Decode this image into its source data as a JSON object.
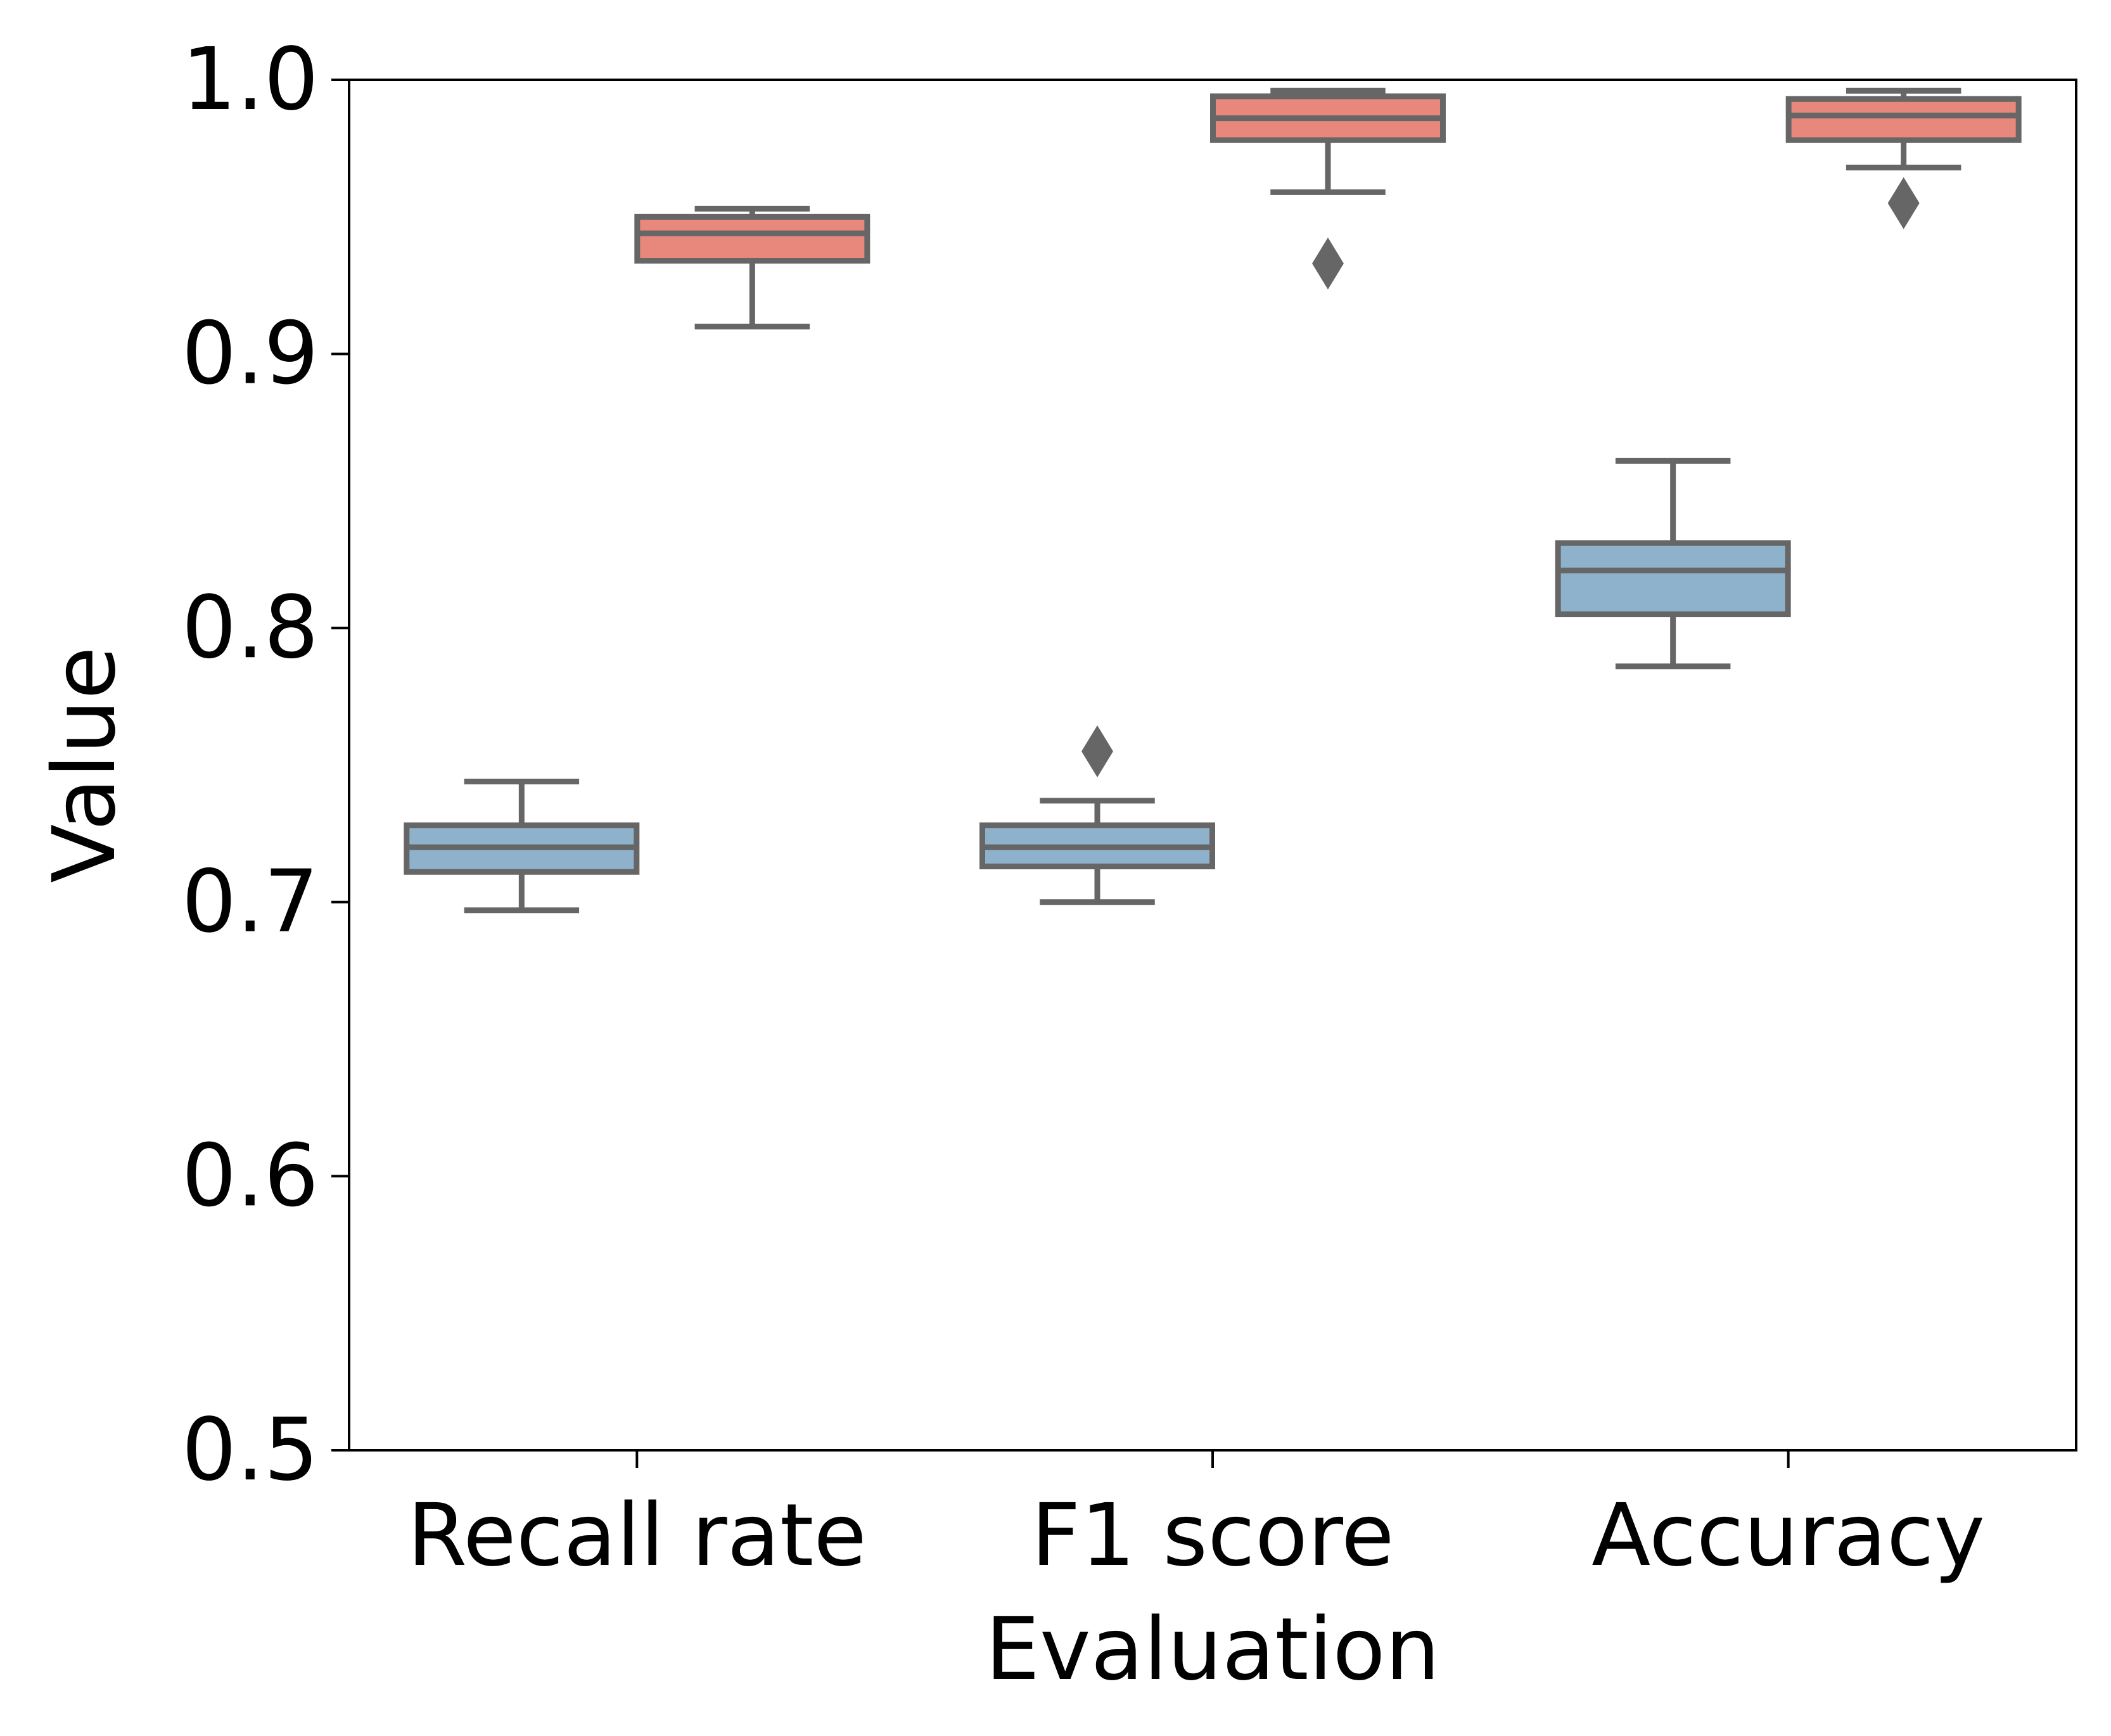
{
  "chart_data": {
    "type": "box",
    "title": "",
    "xlabel": "Evaluation",
    "ylabel": "Value",
    "ylim": [
      0.5,
      1.0
    ],
    "yticks": [
      "0.5",
      "0.6",
      "0.7",
      "0.8",
      "0.9",
      "1.0"
    ],
    "categories": [
      "Recall rate",
      "F1 score",
      "Accuracy"
    ],
    "grid": false,
    "legend": false,
    "colors": {
      "series_a": "#8fb2cc",
      "series_b": "#e8877c",
      "box_edge": "#666666",
      "axis": "#000000"
    },
    "series": [
      {
        "boxes": [
          {
            "category": "Recall rate",
            "whislo": 0.697,
            "q1": 0.711,
            "med": 0.72,
            "q3": 0.728,
            "whishi": 0.744,
            "fliers": []
          },
          {
            "category": "F1 score",
            "whislo": 0.7,
            "q1": 0.713,
            "med": 0.72,
            "q3": 0.728,
            "whishi": 0.737,
            "fliers": [
              0.755
            ]
          },
          {
            "category": "Accuracy",
            "whislo": 0.786,
            "q1": 0.805,
            "med": 0.821,
            "q3": 0.831,
            "whishi": 0.861,
            "fliers": []
          }
        ]
      },
      {
        "boxes": [
          {
            "category": "Recall rate",
            "whislo": 0.91,
            "q1": 0.934,
            "med": 0.944,
            "q3": 0.95,
            "whishi": 0.953,
            "fliers": []
          },
          {
            "category": "F1 score",
            "whislo": 0.959,
            "q1": 0.978,
            "med": 0.986,
            "q3": 0.994,
            "whishi": 0.996,
            "fliers": [
              0.933
            ]
          },
          {
            "category": "Accuracy",
            "whislo": 0.968,
            "q1": 0.978,
            "med": 0.987,
            "q3": 0.993,
            "whishi": 0.996,
            "fliers": [
              0.955
            ]
          }
        ]
      }
    ]
  }
}
